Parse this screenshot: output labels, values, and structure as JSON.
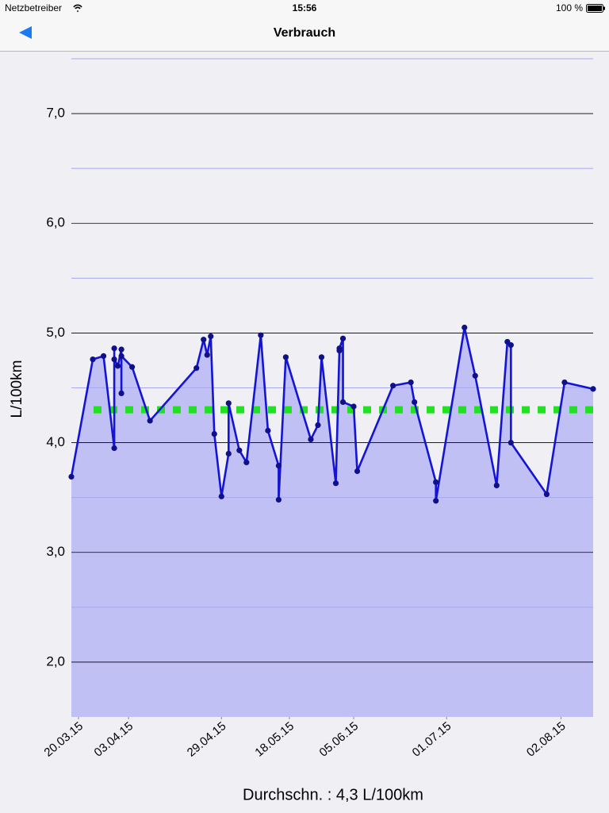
{
  "status_bar": {
    "carrier": "Netzbetreiber",
    "time": "15:56",
    "battery": "100 %"
  },
  "nav": {
    "title": "Verbrauch"
  },
  "chart_data": {
    "type": "line",
    "ylabel": "L/100km",
    "x": [
      "2015-03-18",
      "2015-03-24",
      "2015-03-27",
      "2015-03-30",
      "2015-03-30",
      "2015-03-30",
      "2015-03-31",
      "2015-04-01",
      "2015-04-01",
      "2015-04-01",
      "2015-04-04",
      "2015-04-09",
      "2015-04-22",
      "2015-04-24",
      "2015-04-25",
      "2015-04-26",
      "2015-04-27",
      "2015-04-29",
      "2015-05-01",
      "2015-05-01",
      "2015-05-04",
      "2015-05-06",
      "2015-05-10",
      "2015-05-12",
      "2015-05-15",
      "2015-05-15",
      "2015-05-17",
      "2015-05-24",
      "2015-05-26",
      "2015-05-27",
      "2015-05-31",
      "2015-06-01",
      "2015-06-01",
      "2015-06-02",
      "2015-06-02",
      "2015-06-05",
      "2015-06-06",
      "2015-06-16",
      "2015-06-21",
      "2015-06-22",
      "2015-06-28",
      "2015-06-28",
      "2015-07-06",
      "2015-07-09",
      "2015-07-15",
      "2015-07-18",
      "2015-07-19",
      "2015-07-19",
      "2015-07-29",
      "2015-08-03",
      "2015-08-11"
    ],
    "values": [
      3.69,
      4.76,
      4.79,
      3.95,
      4.86,
      4.76,
      4.7,
      4.85,
      4.45,
      4.79,
      4.69,
      4.2,
      4.68,
      4.94,
      4.8,
      4.97,
      4.08,
      3.51,
      3.9,
      4.36,
      3.93,
      3.82,
      4.98,
      4.11,
      3.79,
      3.48,
      4.78,
      4.03,
      4.16,
      4.78,
      3.63,
      4.84,
      4.86,
      4.95,
      4.37,
      4.33,
      3.74,
      4.52,
      4.55,
      4.37,
      3.64,
      3.47,
      5.05,
      4.61,
      3.61,
      4.92,
      4.89,
      4.0,
      3.53,
      4.55,
      4.49
    ],
    "color": "#1414d6",
    "marker_color": "#10108a",
    "fill_color": "#c0c0f4",
    "xlim": [
      "2015-03-18",
      "2015-08-11"
    ],
    "xticks": [
      {
        "value": "2015-03-20",
        "label": "20.03.15"
      },
      {
        "value": "2015-04-03",
        "label": "03.04.15"
      },
      {
        "value": "2015-04-29",
        "label": "29.04.15"
      },
      {
        "value": "2015-05-18",
        "label": "18.05.15"
      },
      {
        "value": "2015-06-05",
        "label": "05.06.15"
      },
      {
        "value": "2015-07-01",
        "label": "01.07.15"
      },
      {
        "value": "2015-08-02",
        "label": "02.08.15"
      }
    ],
    "ylim": [
      1.5,
      7.5
    ],
    "yticks": [
      {
        "value": 2,
        "label": "2,0"
      },
      {
        "value": 3,
        "label": "3,0"
      },
      {
        "value": 4,
        "label": "4,0"
      },
      {
        "value": 5,
        "label": "5,0"
      },
      {
        "value": 6,
        "label": "6,0"
      },
      {
        "value": 7,
        "label": "7,0"
      }
    ],
    "minor_yticks": [
      2.5,
      3.5,
      4.5,
      5.5,
      6.5,
      7.5
    ],
    "grid": true,
    "average": {
      "value": 4.3,
      "label": "Durchschn. : 4,3 L/100km",
      "color": "#22e022"
    }
  }
}
